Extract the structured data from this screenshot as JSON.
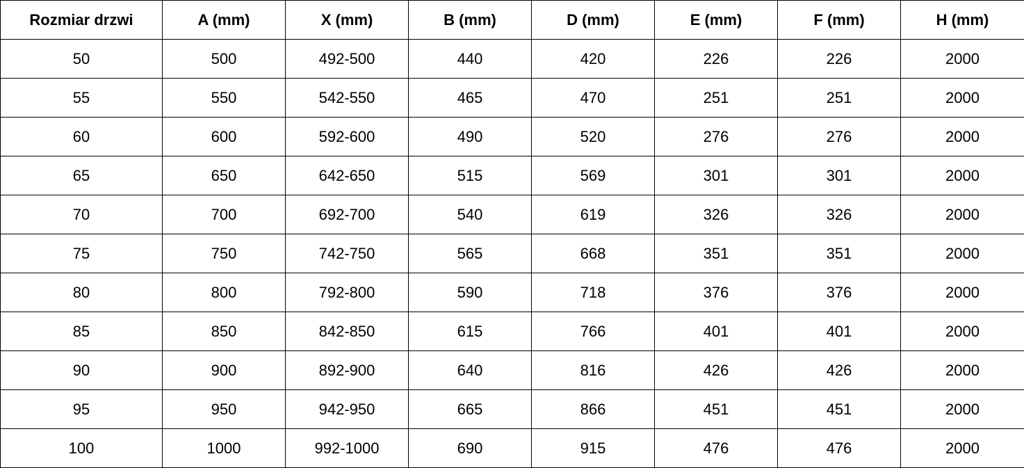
{
  "table": {
    "header": [
      "Rozmiar drzwi",
      "A (mm)",
      "X (mm)",
      "B (mm)",
      "D (mm)",
      "E (mm)",
      "F (mm)",
      "H (mm)"
    ],
    "rows": [
      [
        "50",
        "500",
        "492-500",
        "440",
        "420",
        "226",
        "226",
        "2000"
      ],
      [
        "55",
        "550",
        "542-550",
        "465",
        "470",
        "251",
        "251",
        "2000"
      ],
      [
        "60",
        "600",
        "592-600",
        "490",
        "520",
        "276",
        "276",
        "2000"
      ],
      [
        "65",
        "650",
        "642-650",
        "515",
        "569",
        "301",
        "301",
        "2000"
      ],
      [
        "70",
        "700",
        "692-700",
        "540",
        "619",
        "326",
        "326",
        "2000"
      ],
      [
        "75",
        "750",
        "742-750",
        "565",
        "668",
        "351",
        "351",
        "2000"
      ],
      [
        "80",
        "800",
        "792-800",
        "590",
        "718",
        "376",
        "376",
        "2000"
      ],
      [
        "85",
        "850",
        "842-850",
        "615",
        "766",
        "401",
        "401",
        "2000"
      ],
      [
        "90",
        "900",
        "892-900",
        "640",
        "816",
        "426",
        "426",
        "2000"
      ],
      [
        "95",
        "950",
        "942-950",
        "665",
        "866",
        "451",
        "451",
        "2000"
      ],
      [
        "100",
        "1000",
        "992-1000",
        "690",
        "915",
        "476",
        "476",
        "2000"
      ]
    ]
  }
}
